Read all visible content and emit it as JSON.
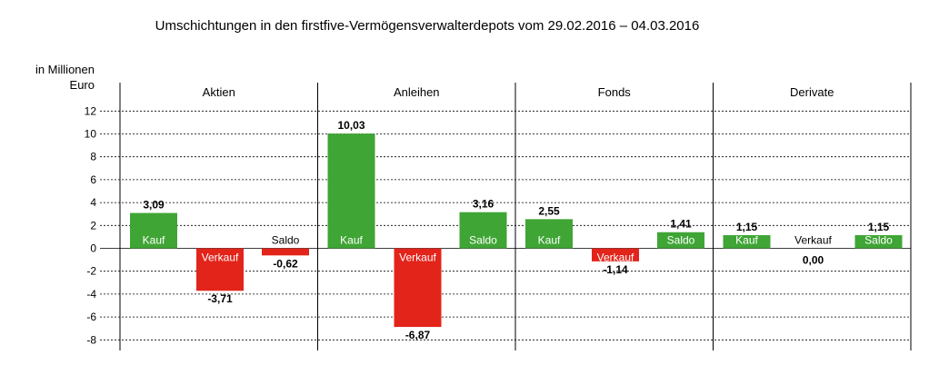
{
  "chart_data": {
    "type": "bar",
    "title": "Umschichtungen in den firstfive-Vermögensverwalterdepots vom 29.02.2016 – 04.03.2016",
    "ylabel_lines": [
      "in Millionen",
      "Euro"
    ],
    "ylim": [
      -8,
      12
    ],
    "yticks": [
      12,
      10,
      8,
      6,
      4,
      2,
      0,
      -2,
      -4,
      -6,
      -8
    ],
    "grid": true,
    "colors": {
      "kauf": "#3fa535",
      "verkauf": "#e2241b",
      "saldo_pos": "#3fa535",
      "saldo_neg": "#e2241b"
    },
    "groups": [
      {
        "name": "Aktien",
        "bars": [
          {
            "label": "Kauf",
            "value": 3.09,
            "display": "3,09"
          },
          {
            "label": "Verkauf",
            "value": -3.71,
            "display": "-3,71"
          },
          {
            "label": "Saldo",
            "value": -0.62,
            "display": "-0,62"
          }
        ]
      },
      {
        "name": "Anleihen",
        "bars": [
          {
            "label": "Kauf",
            "value": 10.03,
            "display": "10,03"
          },
          {
            "label": "Verkauf",
            "value": -6.87,
            "display": "-6,87"
          },
          {
            "label": "Saldo",
            "value": 3.16,
            "display": "3,16"
          }
        ]
      },
      {
        "name": "Fonds",
        "bars": [
          {
            "label": "Kauf",
            "value": 2.55,
            "display": "2,55"
          },
          {
            "label": "Verkauf",
            "value": -1.14,
            "display": "-1,14"
          },
          {
            "label": "Saldo",
            "value": 1.41,
            "display": "1,41"
          }
        ]
      },
      {
        "name": "Derivate",
        "bars": [
          {
            "label": "Kauf",
            "value": 1.15,
            "display": "1,15"
          },
          {
            "label": "Verkauf",
            "value": 0.0,
            "display": "0,00"
          },
          {
            "label": "Saldo",
            "value": 1.15,
            "display": "1,15"
          }
        ]
      }
    ]
  }
}
